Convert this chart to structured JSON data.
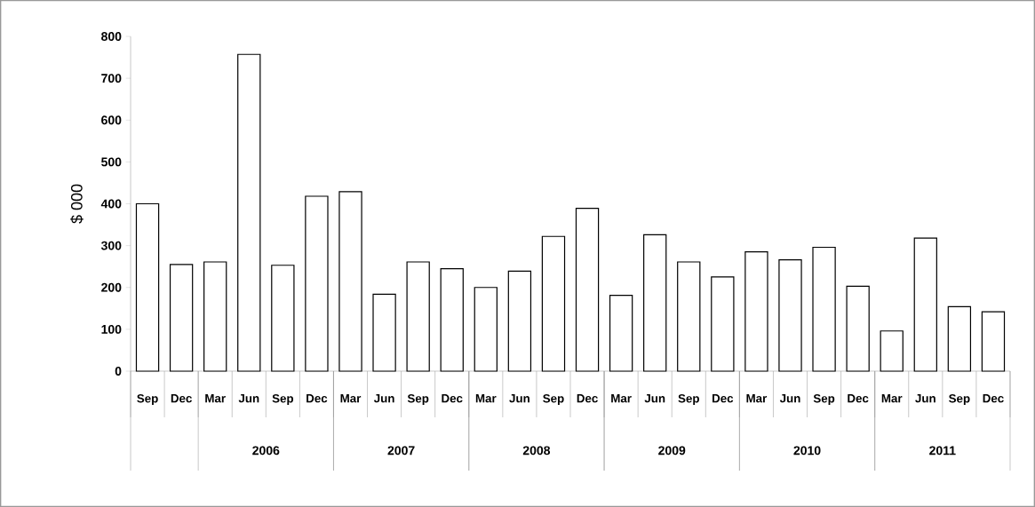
{
  "chart_data": {
    "type": "bar",
    "ylabel": "$ 000",
    "categories": [
      "Sep",
      "Dec",
      "Mar",
      "Jun",
      "Sep",
      "Dec",
      "Mar",
      "Jun",
      "Sep",
      "Dec",
      "Mar",
      "Jun",
      "Sep",
      "Dec",
      "Mar",
      "Jun",
      "Sep",
      "Dec",
      "Mar",
      "Jun",
      "Sep",
      "Dec",
      "Mar",
      "Jun",
      "Sep",
      "Dec"
    ],
    "values": [
      400,
      255,
      261,
      757,
      253,
      418,
      429,
      184,
      261,
      245,
      200,
      239,
      322,
      389,
      181,
      326,
      261,
      225,
      285,
      266,
      296,
      203,
      96,
      318,
      154,
      142
    ],
    "color": "#ffffff",
    "ylim": [
      0,
      800
    ],
    "yticks": [
      0,
      100,
      200,
      300,
      400,
      500,
      600,
      700,
      800
    ],
    "annotations": [
      "2006",
      "2007",
      "2008",
      "2009",
      "2010",
      "2011"
    ]
  }
}
